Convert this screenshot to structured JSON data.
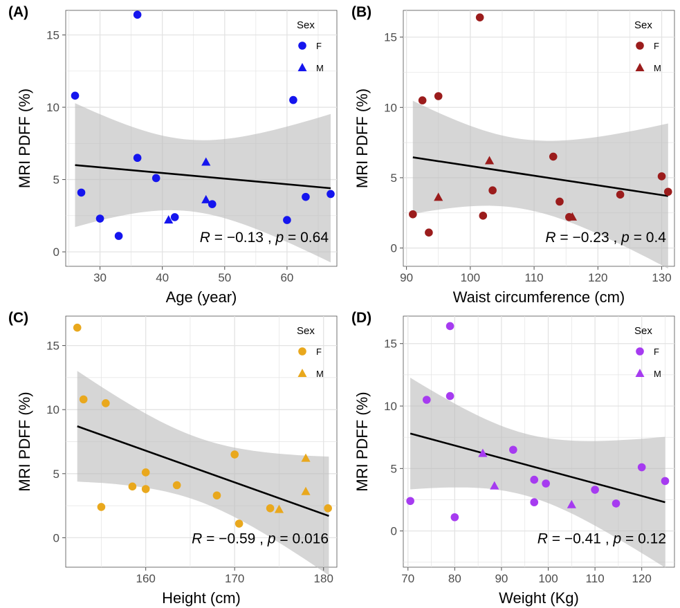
{
  "chart_data": [
    {
      "panel_label": "(A)",
      "type": "scatter",
      "color": "#1515ee",
      "xlabel": "Age (year)",
      "ylabel": "MRI PDFF (%)",
      "xlim": [
        24.5,
        68
      ],
      "ylim": [
        -1,
        16.7
      ],
      "xticks": [
        30,
        40,
        50,
        60
      ],
      "yticks": [
        0,
        5,
        10,
        15
      ],
      "grid": true,
      "legend": {
        "title": "Sex",
        "entries": [
          "F",
          "M"
        ],
        "position": "top-right"
      },
      "annotation": {
        "r_label": "R = −0.13 , p = 0.64",
        "R": "−0.13",
        "p": "0.64"
      },
      "regression": {
        "x": [
          26,
          67
        ],
        "y": [
          6.0,
          4.4
        ]
      },
      "series": [
        {
          "name": "F",
          "marker": "circle",
          "points": [
            [
              26,
              10.8
            ],
            [
              27,
              4.1
            ],
            [
              30,
              2.3
            ],
            [
              33,
              1.1
            ],
            [
              36,
              16.4
            ],
            [
              36,
              6.5
            ],
            [
              39,
              5.1
            ],
            [
              42,
              2.4
            ],
            [
              48,
              3.3
            ],
            [
              60,
              2.2
            ],
            [
              61,
              10.5
            ],
            [
              63,
              3.8
            ],
            [
              67,
              4.0
            ]
          ]
        },
        {
          "name": "M",
          "marker": "triangle",
          "points": [
            [
              41,
              2.2
            ],
            [
              47,
              6.2
            ],
            [
              47,
              3.6
            ]
          ]
        }
      ]
    },
    {
      "panel_label": "(B)",
      "type": "scatter",
      "color": "#9b1c1c",
      "xlabel": "Waist circumference (cm)",
      "ylabel": "MRI PDFF (%)",
      "xlim": [
        89.5,
        132
      ],
      "ylim": [
        -1.3,
        16.9
      ],
      "xticks": [
        90,
        100,
        110,
        120,
        130
      ],
      "yticks": [
        0,
        5,
        10,
        15
      ],
      "grid": true,
      "legend": {
        "title": "Sex",
        "entries": [
          "F",
          "M"
        ],
        "position": "top-right"
      },
      "annotation": {
        "r_label": "R = −0.23 , p = 0.4",
        "R": "−0.23",
        "p": "0.4"
      },
      "regression": {
        "x": [
          91,
          131
        ],
        "y": [
          6.45,
          3.7
        ]
      },
      "series": [
        {
          "name": "F",
          "marker": "circle",
          "points": [
            [
              91,
              2.4
            ],
            [
              92.5,
              10.5
            ],
            [
              93.5,
              1.1
            ],
            [
              95,
              10.8
            ],
            [
              101.5,
              16.4
            ],
            [
              102,
              2.3
            ],
            [
              103.5,
              4.1
            ],
            [
              113,
              6.5
            ],
            [
              114,
              3.3
            ],
            [
              115.5,
              2.2
            ],
            [
              123.5,
              3.8
            ],
            [
              130,
              5.1
            ],
            [
              131,
              4.0
            ]
          ]
        },
        {
          "name": "M",
          "marker": "triangle",
          "points": [
            [
              95,
              3.6
            ],
            [
              103,
              6.2
            ],
            [
              116,
              2.2
            ]
          ]
        }
      ]
    },
    {
      "panel_label": "(C)",
      "type": "scatter",
      "color": "#e9a81d",
      "xlabel": "Height (cm)",
      "ylabel": "MRI PDFF (%)",
      "xlim": [
        151,
        181.5
      ],
      "ylim": [
        -2.3,
        17.3
      ],
      "xticks": [
        160,
        170,
        180
      ],
      "yticks": [
        0,
        5,
        10,
        15
      ],
      "grid": true,
      "legend": {
        "title": "Sex",
        "entries": [
          "F",
          "M"
        ],
        "position": "top-right"
      },
      "annotation": {
        "r_label": "R = −0.59 , p = 0.016",
        "R": "−0.59",
        "p": "0.016"
      },
      "regression": {
        "x": [
          152.3,
          180.6
        ],
        "y": [
          8.7,
          1.7
        ]
      },
      "series": [
        {
          "name": "F",
          "marker": "circle",
          "points": [
            [
              152.3,
              16.4
            ],
            [
              153,
              10.8
            ],
            [
              155,
              2.4
            ],
            [
              155.5,
              10.5
            ],
            [
              158.5,
              4.0
            ],
            [
              160,
              5.1
            ],
            [
              160,
              3.8
            ],
            [
              163.5,
              4.1
            ],
            [
              168,
              3.3
            ],
            [
              170,
              6.5
            ],
            [
              170.5,
              1.1
            ],
            [
              174,
              2.3
            ],
            [
              180.5,
              2.3
            ]
          ]
        },
        {
          "name": "M",
          "marker": "triangle",
          "points": [
            [
              175,
              2.2
            ],
            [
              178,
              6.2
            ],
            [
              178,
              3.6
            ]
          ]
        }
      ]
    },
    {
      "panel_label": "(D)",
      "type": "scatter",
      "color": "#a63bf0",
      "xlabel": "Weight (Kg)",
      "ylabel": "MRI PDFF (%)",
      "xlim": [
        69,
        127
      ],
      "ylim": [
        -2.9,
        17.2
      ],
      "xticks": [
        70,
        80,
        90,
        100,
        110,
        120
      ],
      "yticks": [
        0,
        5,
        10,
        15
      ],
      "grid": true,
      "legend": {
        "title": "Sex",
        "entries": [
          "F",
          "M"
        ],
        "position": "top-right"
      },
      "annotation": {
        "r_label": "R = −0.41 , p = 0.12",
        "R": "−0.41",
        "p": "0.12"
      },
      "regression": {
        "x": [
          70.5,
          125
        ],
        "y": [
          7.8,
          2.3
        ]
      },
      "series": [
        {
          "name": "F",
          "marker": "circle",
          "points": [
            [
              70.5,
              2.4
            ],
            [
              74,
              10.5
            ],
            [
              79,
              10.8
            ],
            [
              79,
              16.4
            ],
            [
              80,
              1.1
            ],
            [
              92.5,
              6.5
            ],
            [
              97,
              4.1
            ],
            [
              97,
              2.3
            ],
            [
              99.5,
              3.8
            ],
            [
              110,
              3.3
            ],
            [
              114.5,
              2.2
            ],
            [
              120,
              5.1
            ],
            [
              125,
              4.0
            ]
          ]
        },
        {
          "name": "M",
          "marker": "triangle",
          "points": [
            [
              86,
              6.2
            ],
            [
              88.5,
              3.6
            ],
            [
              105,
              2.1
            ]
          ]
        }
      ]
    }
  ]
}
